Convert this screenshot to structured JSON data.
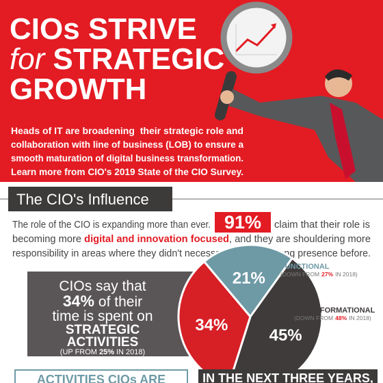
{
  "header": {
    "title": [
      "CIOs STRIVE",
      "for",
      "STRATEGIC",
      "GROWTH"
    ],
    "intro": [
      "Heads of IT are broadening  their strategic role and",
      "collaboration with line of business (LOB) to ensure a",
      "smooth maturation of digital business transformation.",
      "Learn more from CIO's 2019 State of the CIO Survey."
    ]
  },
  "influence": {
    "title": "The CIO's Influence",
    "line1": "The role of the CIO is expanding more than ever.",
    "stat": "91%",
    "line1_end": "claim that their role is",
    "line2": "becoming more",
    "highlight": "digital and innovation focused",
    "line2_end": ", and they are shouldering more",
    "line3": "responsibility in areas where they didn't necessarily have a strong presence before."
  },
  "callout": {
    "lines": [
      "CIOs say that"
    ],
    "stat": "34%",
    "after_stat": "of their",
    "line3": "time is spent on",
    "emphasis": [
      "STRATEGIC",
      "ACTIVITIES"
    ],
    "prior_pre": "(UP FROM",
    "prior": "25%",
    "prior_post": "IN 2018)"
  },
  "chart_data": {
    "type": "pie",
    "categories": [
      "FUNCTIONAL",
      "TRANSFORMATIONAL",
      null
    ],
    "values": [
      21,
      45,
      34
    ],
    "value_labels": [
      "21%",
      "45%",
      "34%"
    ],
    "colors": [
      "#6e9aa6",
      "#3f3b3b",
      "#d71f26"
    ],
    "notes": [
      {
        "pre": "(DOWN FROM",
        "value": "27%",
        "post": "IN 2018)"
      },
      {
        "pre": "(DOWN FROM",
        "value": "48%",
        "post": "IN 2018)"
      }
    ]
  },
  "footer": {
    "left": "ACTIVITIES CIOs ARE",
    "right": "IN THE NEXT THREE YEARS,"
  }
}
